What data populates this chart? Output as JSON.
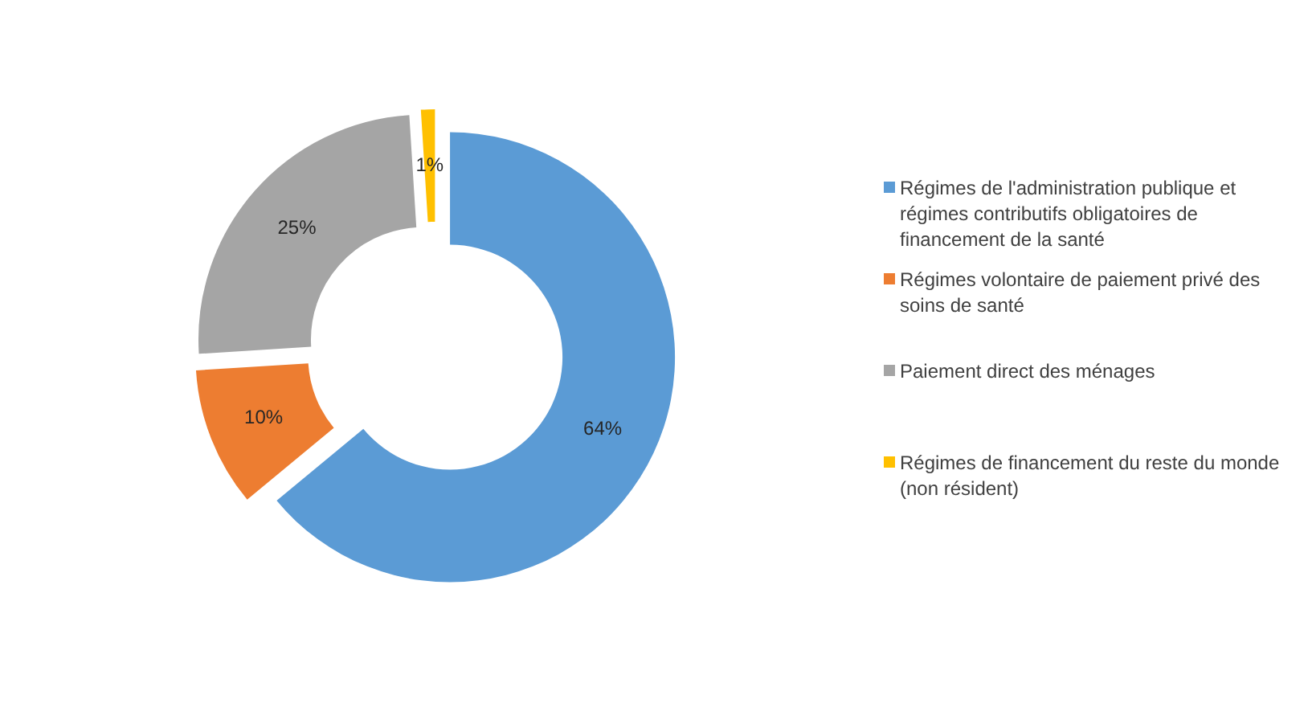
{
  "chart_data": {
    "type": "donut",
    "categories": [
      "Régimes de l'administration publique et régimes contributifs obligatoires de financement de la santé",
      "Régimes volontaire de paiement privé des soins de santé",
      "Paiement direct des ménages",
      "Régimes de financement du reste du monde (non résident)"
    ],
    "values": [
      64,
      10,
      25,
      1
    ],
    "colors": [
      "#5b9bd5",
      "#ed7d31",
      "#a5a5a5",
      "#ffc000"
    ],
    "value_labels": [
      "64%",
      "10%",
      "25%",
      "1%"
    ],
    "legend": "right"
  }
}
